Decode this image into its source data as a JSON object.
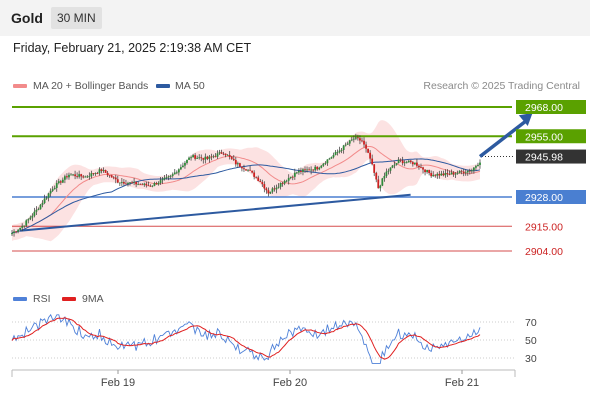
{
  "header": {
    "instrument": "Gold",
    "timeframe": "30 MIN"
  },
  "timestamp": "Friday, February 21, 2025 2:19:38 AM CET",
  "copyright": "Research © 2025 Trading Central",
  "colors": {
    "accent_green": "#5aa100",
    "accent_blue": "#4a7fd1",
    "accent_red": "#cc2222",
    "bands": "#f9caca",
    "ma50": "#2d5aa0",
    "rsi": "#4f81d8",
    "rsi_ma": "#e02020"
  },
  "chart_data": [
    {
      "type": "candlestick",
      "legend": [
        {
          "name": "MA 20 + Bollinger Bands",
          "color": "#f28b8b"
        },
        {
          "name": "MA 50",
          "color": "#2d5aa0"
        }
      ],
      "levels": [
        {
          "value": 2968.0,
          "label": "2968.00",
          "kind": "resistance",
          "color": "#5aa100"
        },
        {
          "value": 2955.0,
          "label": "2955.00",
          "kind": "resistance",
          "color": "#5aa100"
        },
        {
          "value": 2928.0,
          "label": "2928.00",
          "kind": "pivot",
          "color": "#4a7fd1"
        },
        {
          "value": 2915.0,
          "label": "2915.00",
          "kind": "support",
          "color": "#cc2222"
        },
        {
          "value": 2904.0,
          "label": "2904.00",
          "kind": "support",
          "color": "#cc2222"
        }
      ],
      "last_price": {
        "value": 2945.98,
        "label": "2945.98"
      },
      "x_ticks": [
        "Feb 19",
        "Feb 20",
        "Feb 21"
      ],
      "close_path": [
        [
          0,
          2912
        ],
        [
          5,
          2915
        ],
        [
          12,
          2922
        ],
        [
          20,
          2932
        ],
        [
          28,
          2938
        ],
        [
          36,
          2937
        ],
        [
          44,
          2940
        ],
        [
          52,
          2935
        ],
        [
          60,
          2934
        ],
        [
          68,
          2933
        ],
        [
          78,
          2937
        ],
        [
          88,
          2946
        ],
        [
          96,
          2945
        ],
        [
          104,
          2948
        ],
        [
          110,
          2943
        ],
        [
          116,
          2940
        ],
        [
          122,
          2935
        ],
        [
          126,
          2930
        ],
        [
          132,
          2934
        ],
        [
          140,
          2939
        ],
        [
          150,
          2941
        ],
        [
          160,
          2948
        ],
        [
          168,
          2954
        ],
        [
          172,
          2953
        ],
        [
          176,
          2945
        ],
        [
          180,
          2932
        ],
        [
          184,
          2939
        ],
        [
          190,
          2944
        ],
        [
          198,
          2943
        ],
        [
          206,
          2938
        ],
        [
          214,
          2938
        ],
        [
          220,
          2939
        ],
        [
          226,
          2940
        ],
        [
          230,
          2944
        ]
      ],
      "trendline": {
        "start": [
          0,
          2913
        ],
        "end": [
          190,
          2929
        ]
      },
      "projection": {
        "start": [
          230,
          2946
        ],
        "end": [
          245,
          2968
        ]
      }
    },
    {
      "type": "line",
      "legend": [
        {
          "name": "RSI",
          "color": "#4f81d8"
        },
        {
          "name": "9MA",
          "color": "#e02020"
        }
      ],
      "y_ticks": [
        70,
        50,
        30
      ],
      "ylim": [
        20,
        80
      ]
    }
  ]
}
